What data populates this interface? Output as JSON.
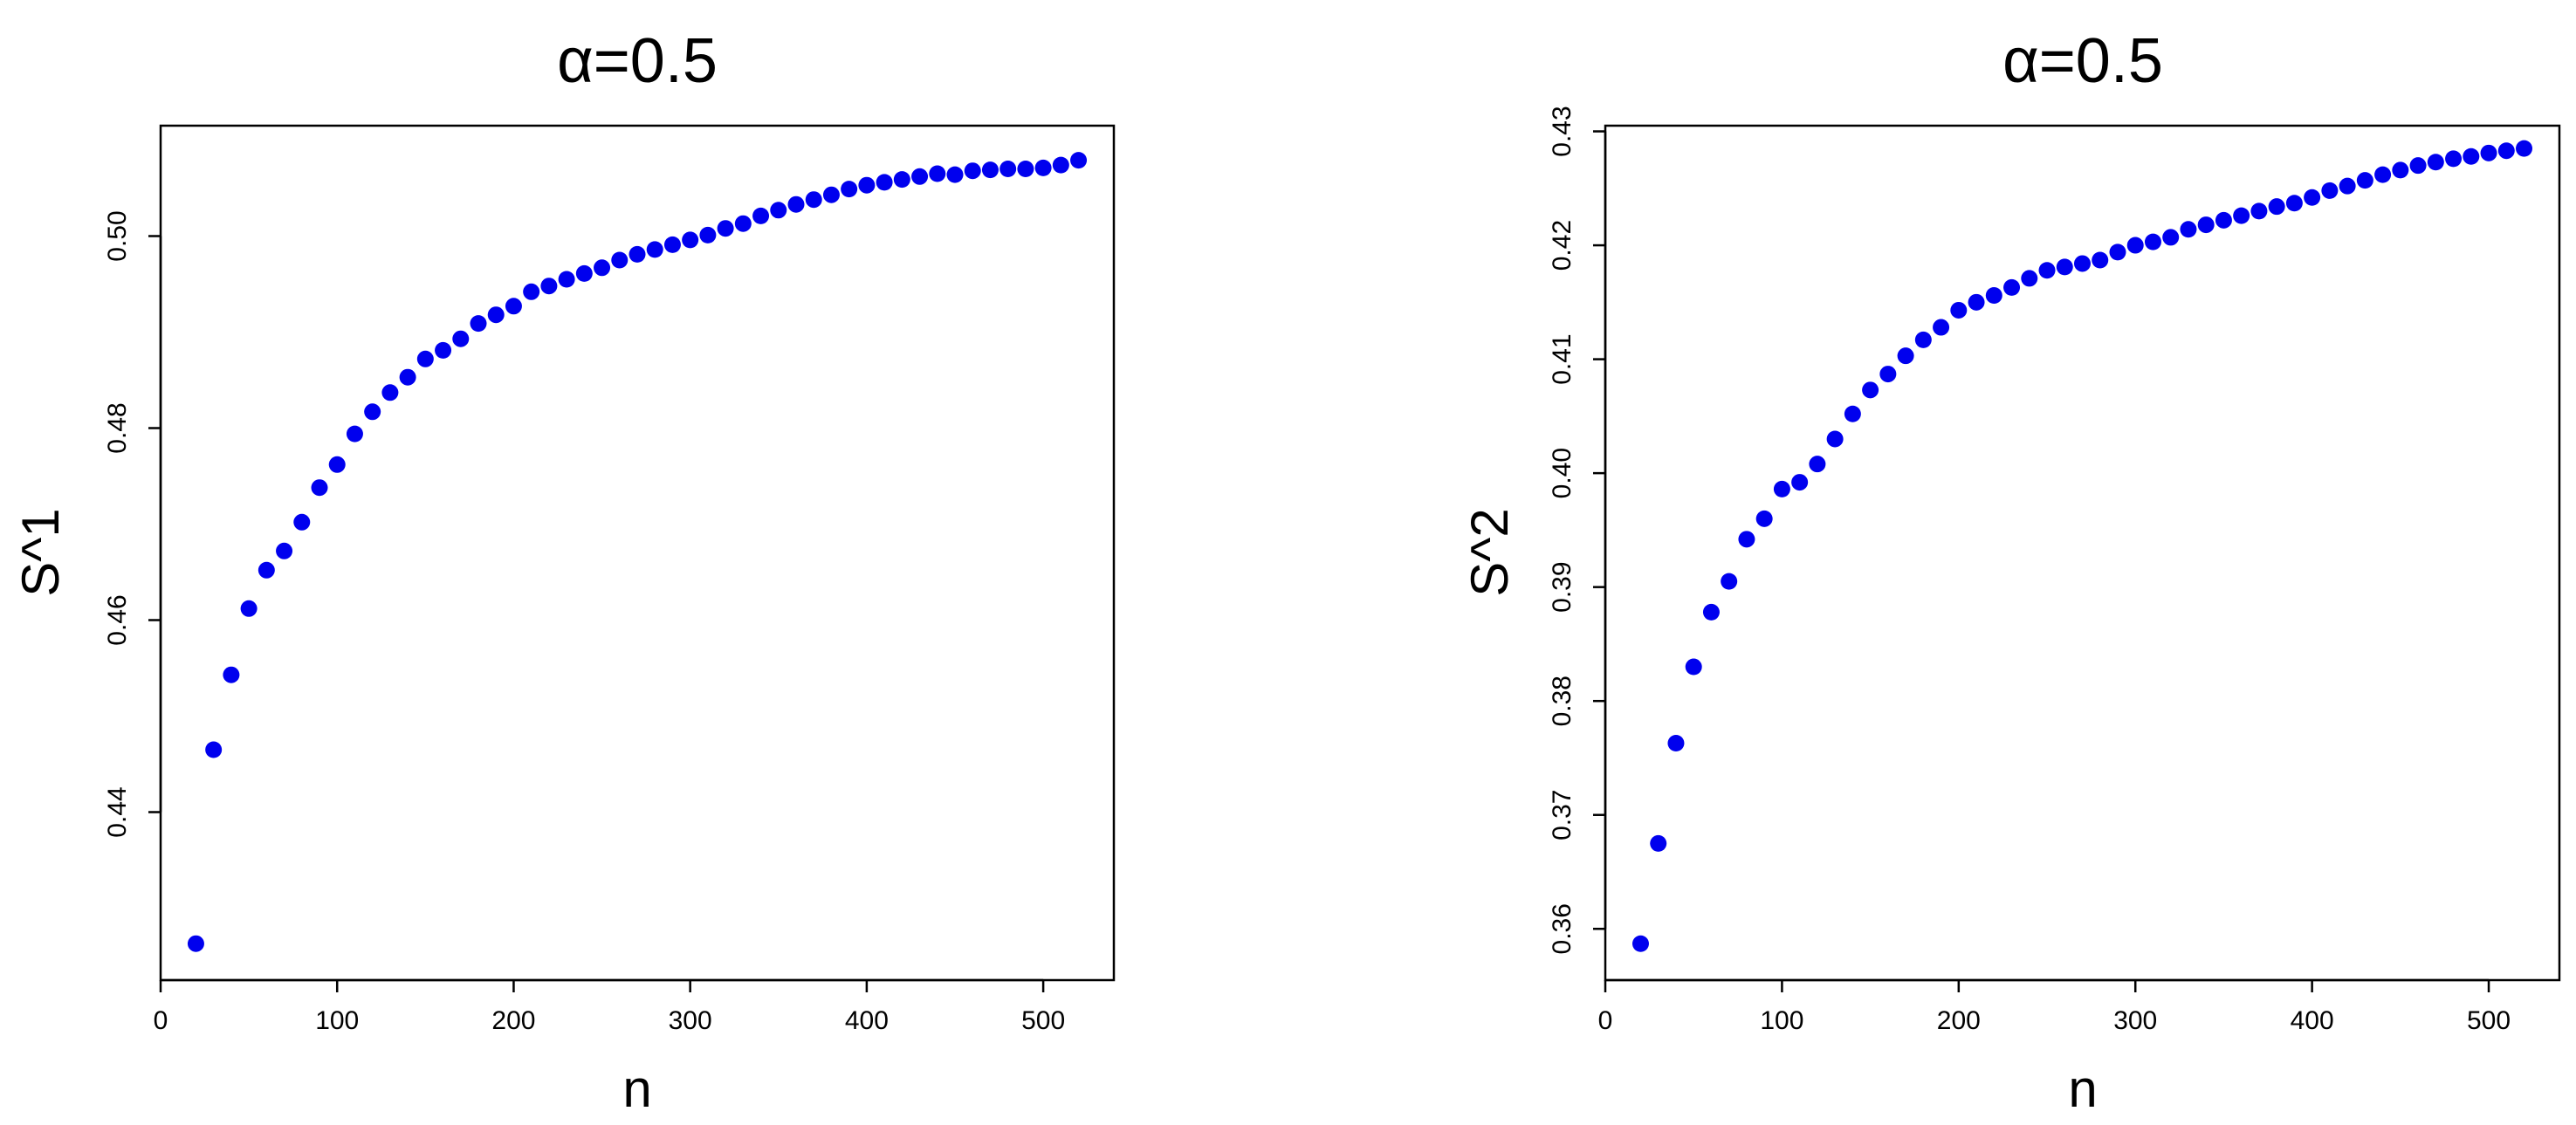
{
  "chart_data": [
    {
      "type": "scatter",
      "title": "α=0.5",
      "xlabel": "n",
      "ylabel": "S^1",
      "xlim": [
        0,
        540
      ],
      "ylim": [
        0.4225,
        0.5115
      ],
      "x_ticks": [
        0,
        100,
        200,
        300,
        400,
        500
      ],
      "x_tick_labels": [
        "0",
        "100",
        "200",
        "300",
        "400",
        "500"
      ],
      "y_ticks": [
        0.44,
        0.46,
        0.48,
        0.5
      ],
      "y_tick_labels": [
        "0.44",
        "0.46",
        "0.48",
        "0.50"
      ],
      "grid": false,
      "marker_color": "#0000ee",
      "x": [
        20,
        30,
        40,
        50,
        60,
        70,
        80,
        90,
        100,
        110,
        120,
        130,
        140,
        150,
        160,
        170,
        180,
        190,
        200,
        210,
        220,
        230,
        240,
        250,
        260,
        270,
        280,
        290,
        300,
        310,
        320,
        330,
        340,
        350,
        360,
        370,
        380,
        390,
        400,
        410,
        420,
        430,
        440,
        450,
        460,
        470,
        480,
        490,
        500,
        510,
        520
      ],
      "y": [
        0.4263,
        0.4465,
        0.4543,
        0.4612,
        0.4652,
        0.4672,
        0.4702,
        0.4738,
        0.4762,
        0.4794,
        0.4817,
        0.4837,
        0.4853,
        0.4872,
        0.4881,
        0.4893,
        0.4909,
        0.4918,
        0.4927,
        0.4942,
        0.4948,
        0.4955,
        0.4961,
        0.4967,
        0.4975,
        0.4981,
        0.4986,
        0.4991,
        0.4996,
        0.5001,
        0.5008,
        0.5013,
        0.5021,
        0.5027,
        0.5033,
        0.5038,
        0.5043,
        0.5049,
        0.5053,
        0.5056,
        0.5059,
        0.5062,
        0.5065,
        0.5064,
        0.5068,
        0.5069,
        0.507,
        0.507,
        0.5071,
        0.5074,
        0.5079
      ]
    },
    {
      "type": "scatter",
      "title": "α=0.5",
      "xlabel": "n",
      "ylabel": "S^2",
      "xlim": [
        0,
        540
      ],
      "ylim": [
        0.3555,
        0.4305
      ],
      "x_ticks": [
        0,
        100,
        200,
        300,
        400,
        500
      ],
      "x_tick_labels": [
        "0",
        "100",
        "200",
        "300",
        "400",
        "500"
      ],
      "y_ticks": [
        0.36,
        0.37,
        0.38,
        0.39,
        0.4,
        0.41,
        0.42,
        0.43
      ],
      "y_tick_labels": [
        "0.36",
        "0.37",
        "0.38",
        "0.39",
        "0.40",
        "0.41",
        "0.42",
        "0.43"
      ],
      "grid": false,
      "marker_color": "#0000ee",
      "x": [
        20,
        30,
        40,
        50,
        60,
        70,
        80,
        90,
        100,
        110,
        120,
        130,
        140,
        150,
        160,
        170,
        180,
        190,
        200,
        210,
        220,
        230,
        240,
        250,
        260,
        270,
        280,
        290,
        300,
        310,
        320,
        330,
        340,
        350,
        360,
        370,
        380,
        390,
        400,
        410,
        420,
        430,
        440,
        450,
        460,
        470,
        480,
        490,
        500,
        510,
        520
      ],
      "y": [
        0.3587,
        0.3675,
        0.3763,
        0.383,
        0.3878,
        0.3905,
        0.3942,
        0.396,
        0.3986,
        0.3992,
        0.4008,
        0.403,
        0.4052,
        0.4073,
        0.4087,
        0.4103,
        0.4117,
        0.4128,
        0.4143,
        0.415,
        0.4156,
        0.4163,
        0.4171,
        0.4178,
        0.4181,
        0.4184,
        0.4187,
        0.4194,
        0.42,
        0.4203,
        0.4207,
        0.4214,
        0.4218,
        0.4222,
        0.4226,
        0.423,
        0.4234,
        0.4237,
        0.4242,
        0.4248,
        0.4252,
        0.4257,
        0.4262,
        0.4266,
        0.427,
        0.4273,
        0.4276,
        0.4278,
        0.4281,
        0.4283,
        0.4285
      ]
    }
  ]
}
